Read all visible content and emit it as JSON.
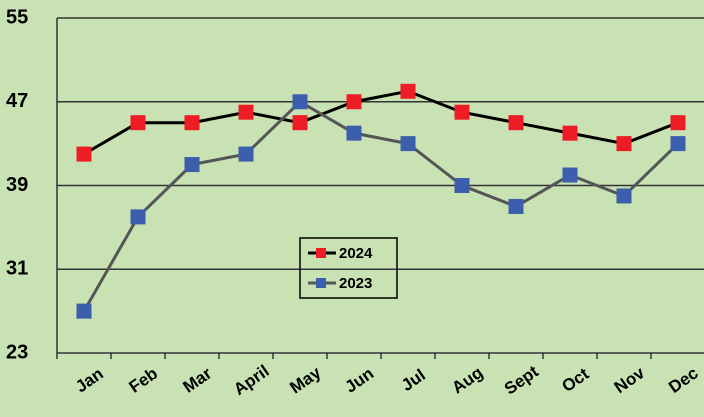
{
  "chart_data": {
    "type": "line",
    "categories": [
      "Jan",
      "Feb",
      "Mar",
      "April",
      "May",
      "Jun",
      "Jul",
      "Aug",
      "Sept",
      "Oct",
      "Nov",
      "Dec"
    ],
    "series": [
      {
        "name": "2024",
        "color": "#ee1c24",
        "line_color": "#000000",
        "values": [
          42,
          45,
          45,
          46,
          45,
          47,
          48,
          46,
          45,
          44,
          43,
          45
        ]
      },
      {
        "name": "2023",
        "color": "#3b5ead",
        "line_color": "#555555",
        "values": [
          27,
          36,
          41,
          42,
          47,
          44,
          43,
          39,
          37,
          40,
          38,
          43
        ]
      }
    ],
    "ylim": [
      23,
      55
    ],
    "yticks": [
      23,
      31,
      39,
      47,
      55
    ],
    "grid": true
  }
}
